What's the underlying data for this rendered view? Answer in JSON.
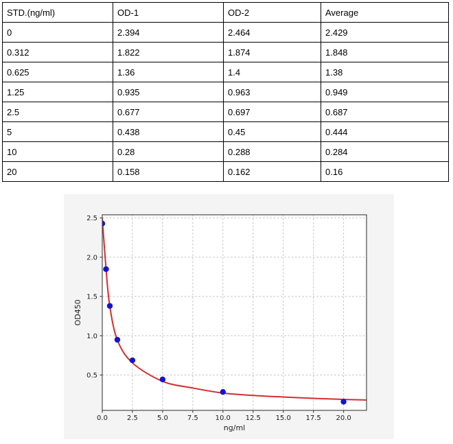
{
  "table": {
    "headers": [
      "STD.(ng/ml)",
      "OD-1",
      "OD-2",
      "Average"
    ],
    "rows": [
      [
        "0",
        "2.394",
        "2.464",
        "2.429"
      ],
      [
        "0.312",
        "1.822",
        "1.874",
        "1.848"
      ],
      [
        "0.625",
        "1.36",
        "1.4",
        "1.38"
      ],
      [
        "1.25",
        "0.935",
        "0.963",
        "0.949"
      ],
      [
        "2.5",
        "0.677",
        "0.697",
        "0.687"
      ],
      [
        "5",
        "0.438",
        "0.45",
        "0.444"
      ],
      [
        "10",
        "0.28",
        "0.288",
        "0.284"
      ],
      [
        "20",
        "0.158",
        "0.162",
        "0.16"
      ]
    ]
  },
  "chart_data": {
    "type": "scatter",
    "title": "",
    "xlabel": "ng/ml",
    "ylabel": "OD450",
    "x": [
      0,
      0.312,
      0.625,
      1.25,
      2.5,
      5,
      10,
      20
    ],
    "y": [
      2.429,
      1.848,
      1.38,
      0.949,
      0.687,
      0.444,
      0.284,
      0.16
    ],
    "series": [
      {
        "name": "standard-points",
        "type": "scatter",
        "color": "#1414cf"
      },
      {
        "name": "fit-curve",
        "type": "line",
        "color": "#d62c2c"
      }
    ],
    "fit_curve": {
      "x": [
        0,
        0.312,
        0.625,
        1.25,
        2.5,
        5,
        7.5,
        10,
        12.5,
        15,
        17.5,
        20,
        21.9
      ],
      "y": [
        2.5,
        1.85,
        1.375,
        0.945,
        0.655,
        0.42,
        0.335,
        0.27,
        0.24,
        0.22,
        0.203,
        0.19,
        0.182
      ]
    },
    "xlim": [
      0,
      21.9
    ],
    "ylim": [
      0.05,
      2.54
    ],
    "xticks": [
      0,
      2.5,
      5,
      7.5,
      10,
      12.5,
      15,
      17.5,
      20
    ],
    "xtick_labels": [
      "0.0",
      "2.5",
      "5.0",
      "7.5",
      "10.0",
      "12.5",
      "15.0",
      "17.5",
      "20.0"
    ],
    "yticks": [
      0.5,
      1.0,
      1.5,
      2.0,
      2.5
    ],
    "ytick_labels": [
      "0.5",
      "1.0",
      "1.5",
      "2.0",
      "2.5"
    ],
    "grid": true,
    "grid_style": "dashed",
    "legend": null,
    "colors": {
      "marker": "#1414cf",
      "line": "#d62c2c",
      "grid": "#c6c6c6",
      "figure_bg": "#f4f4f4",
      "plot_bg": "#ffffff",
      "spine": "#4a4a4a",
      "tick_label": "#1c1c1c"
    }
  }
}
